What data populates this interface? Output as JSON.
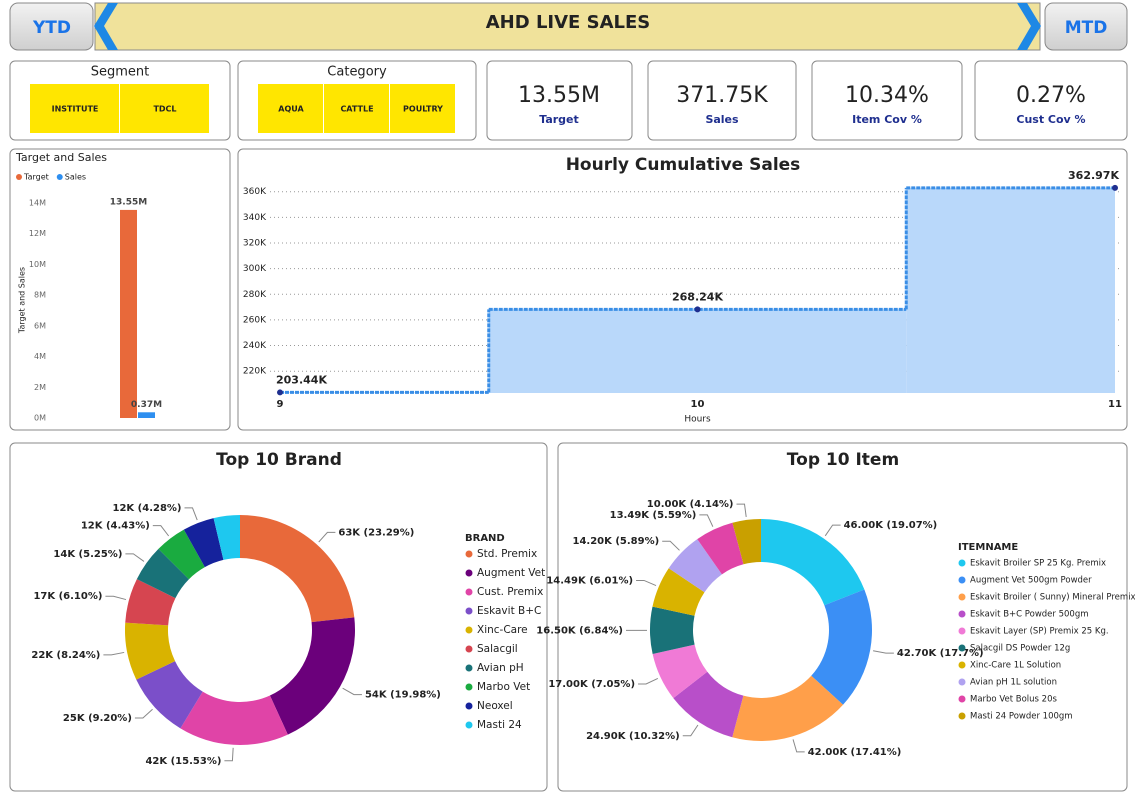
{
  "header": {
    "left_button": "YTD",
    "title": "AHD LIVE SALES",
    "right_button": "MTD"
  },
  "slicers": [
    {
      "title": "Segment",
      "options": [
        "INSTITUTE",
        "TDCL"
      ]
    },
    {
      "title": "Category",
      "options": [
        "AQUA",
        "CATTLE",
        "POULTRY"
      ]
    }
  ],
  "kpis": [
    {
      "value": "13.55M",
      "label": "Target"
    },
    {
      "value": "371.75K",
      "label": "Sales"
    },
    {
      "value": "10.34%",
      "label": "Item Cov %"
    },
    {
      "value": "0.27%",
      "label": "Cust Cov %"
    }
  ],
  "chart_data": [
    {
      "type": "bar",
      "title": "Target and Sales",
      "ylabel": "Target and Sales",
      "categories": [
        null
      ],
      "series": [
        {
          "name": "Target",
          "color": "#e8693a",
          "values": [
            13550000
          ],
          "value_labels": [
            "13.55M"
          ]
        },
        {
          "name": "Sales",
          "color": "#2e8ff0",
          "values": [
            371750
          ],
          "value_labels": [
            "0.37M"
          ]
        }
      ],
      "ylim": [
        0,
        14000000
      ],
      "yticks": [
        {
          "value": 0,
          "label": "0M"
        },
        {
          "value": 2000000,
          "label": "2M"
        },
        {
          "value": 4000000,
          "label": "4M"
        },
        {
          "value": 6000000,
          "label": "6M"
        },
        {
          "value": 8000000,
          "label": "8M"
        },
        {
          "value": 10000000,
          "label": "10M"
        },
        {
          "value": 12000000,
          "label": "12M"
        },
        {
          "value": 14000000,
          "label": "14M"
        }
      ],
      "legend": "top-left"
    },
    {
      "type": "step",
      "title": "Hourly Cumulative Sales",
      "xlabel": "Hours",
      "x": [
        9,
        10,
        11
      ],
      "values": [
        203440,
        268240,
        362970
      ],
      "value_labels": [
        "203.44K",
        "268.24K",
        "362.97K"
      ],
      "color": "#3a8ee6",
      "fill": "#b9d8fa",
      "xlim": [
        9,
        11
      ],
      "xticks": [
        9,
        10,
        11
      ],
      "ylim": [
        203000,
        366000
      ],
      "yticks": [
        {
          "value": 220000,
          "label": "220K"
        },
        {
          "value": 240000,
          "label": "240K"
        },
        {
          "value": 260000,
          "label": "260K"
        },
        {
          "value": 280000,
          "label": "280K"
        },
        {
          "value": 300000,
          "label": "300K"
        },
        {
          "value": 320000,
          "label": "320K"
        },
        {
          "value": 340000,
          "label": "340K"
        },
        {
          "value": 360000,
          "label": "360K"
        }
      ],
      "grid": true
    },
    {
      "type": "donut",
      "title": "Top 10 Brand",
      "legend_title": "BRAND",
      "categories": [
        "Std. Premix",
        "Augment Vet",
        "Cust. Premix",
        "Eskavit B+C",
        "Xinc-Care",
        "Salacgil",
        "Avian pH",
        "Marbo Vet",
        "Neoxel",
        "Masti 24"
      ],
      "values": [
        63,
        54,
        42,
        25,
        22,
        17,
        14,
        12,
        12,
        10
      ],
      "value_labels": [
        "63K (23.29%)",
        "54K (19.98%)",
        "42K (15.53%)",
        "25K (9.20%)",
        "22K (8.24%)",
        "17K (6.10%)",
        "14K (5.25%)",
        "12K (4.43%)",
        "12K (4.28%)",
        null
      ],
      "colors": [
        "#e8693a",
        "#6b007b",
        "#e044a7",
        "#7b4fc9",
        "#d9b300",
        "#d64550",
        "#197278",
        "#1aab40",
        "#15229c",
        "#1ec8ef"
      ]
    },
    {
      "type": "donut",
      "title": "Top 10 Item",
      "legend_title": "ITEMNAME",
      "categories": [
        "Eskavit Broiler SP 25 Kg. Premix",
        "Augment Vet 500gm Powder",
        "Eskavit Broiler ( Sunny) Mineral Premix",
        "Eskavit B+C Powder 500gm",
        "Eskavit Layer (SP) Premix 25 Kg.",
        "Salacgil DS Powder 12g",
        "Xinc-Care 1L Solution",
        "Avian pH 1L solution",
        "Marbo Vet Bolus 20s",
        "Masti 24 Powder 100gm"
      ],
      "values": [
        46.0,
        42.7,
        42.0,
        24.9,
        17.0,
        16.5,
        14.49,
        14.2,
        13.49,
        10.0
      ],
      "value_labels": [
        "46.00K (19.07%)",
        "42.70K (17.7%)",
        "42.00K (17.41%)",
        "24.90K (10.32%)",
        "17.00K (7.05%)",
        "16.50K (6.84%)",
        "14.49K (6.01%)",
        "14.20K (5.89%)",
        "13.49K (5.59%)",
        "10.00K (4.14%)"
      ],
      "colors": [
        "#1ec8ef",
        "#3b8ff5",
        "#ff9f4a",
        "#b84fc9",
        "#f07ad6",
        "#197278",
        "#d9b300",
        "#b0a2f0",
        "#e044a7",
        "#c9a000"
      ]
    }
  ]
}
